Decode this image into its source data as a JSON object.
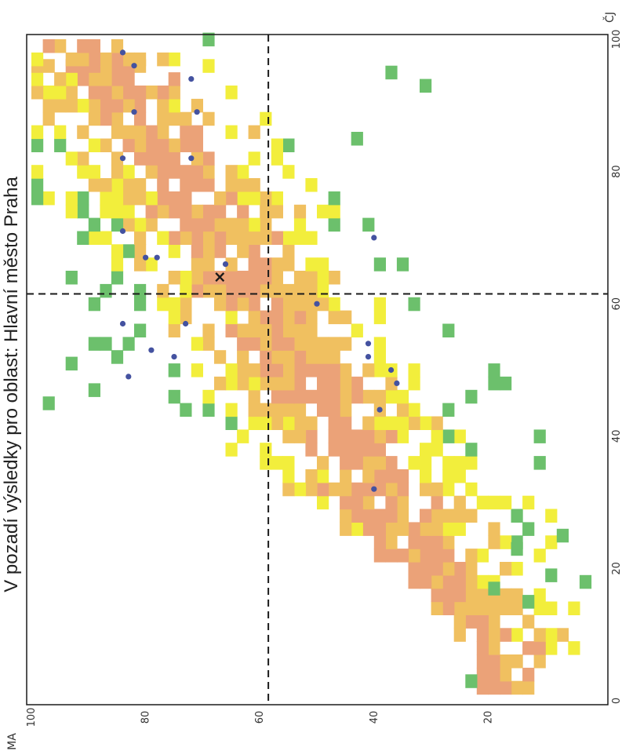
{
  "chart_data": {
    "type": "heatmap",
    "orientation": "rotated 90 degrees clockwise",
    "title": "V pozadí výsledky pro oblast: Hlavní město Praha",
    "xlabel": "ČJ",
    "ylabel": "MA",
    "xlim": [
      0,
      100
    ],
    "ylim": [
      0,
      100
    ],
    "x_ticks": [
      "0",
      "20",
      "40",
      "60",
      "80",
      "100"
    ],
    "y_ticks": [
      "20",
      "40",
      "60",
      "80",
      "100"
    ],
    "grid": false,
    "cell_size": 2,
    "reference_lines": {
      "x": 61.5,
      "y": 58.5
    },
    "colors": {
      "low": "#6cc06c",
      "medium": "#f2ee3c",
      "high": "#f0c060",
      "very_high": "#eba278",
      "points": "#4452a0",
      "reference_lines": "#1a1a1a",
      "marker": "#1a1a1a"
    },
    "bands": [
      {
        "x": 3,
        "y0": 12,
        "y1": 22
      },
      {
        "x": 7,
        "y0": 2,
        "y1": 22
      },
      {
        "x": 11,
        "y0": 6,
        "y1": 26
      },
      {
        "x": 15,
        "y0": 4,
        "y1": 30
      },
      {
        "x": 19,
        "y0": 2,
        "y1": 34
      },
      {
        "x": 23,
        "y0": 4,
        "y1": 40
      },
      {
        "x": 27,
        "y0": 6,
        "y1": 46
      },
      {
        "x": 31,
        "y0": 8,
        "y1": 56
      },
      {
        "x": 35,
        "y0": 10,
        "y1": 62
      },
      {
        "x": 39,
        "y0": 10,
        "y1": 68
      },
      {
        "x": 43,
        "y0": 12,
        "y1": 76
      },
      {
        "x": 47,
        "y0": 16,
        "y1": 82
      },
      {
        "x": 51,
        "y0": 18,
        "y1": 86
      },
      {
        "x": 55,
        "y0": 22,
        "y1": 90
      },
      {
        "x": 59,
        "y0": 26,
        "y1": 92
      },
      {
        "x": 63,
        "y0": 30,
        "y1": 94
      },
      {
        "x": 67,
        "y0": 34,
        "y1": 96
      },
      {
        "x": 71,
        "y0": 38,
        "y1": 98
      },
      {
        "x": 75,
        "y0": 42,
        "y1": 99
      },
      {
        "x": 79,
        "y0": 46,
        "y1": 99
      },
      {
        "x": 83,
        "y0": 52,
        "y1": 99
      },
      {
        "x": 87,
        "y0": 56,
        "y1": 99
      },
      {
        "x": 91,
        "y0": 62,
        "y1": 99
      },
      {
        "x": 95,
        "y0": 68,
        "y1": 99
      },
      {
        "x": 98,
        "y0": 74,
        "y1": 99
      }
    ],
    "points": [
      {
        "x": 98,
        "y": 84
      },
      {
        "x": 96,
        "y": 82
      },
      {
        "x": 94,
        "y": 72
      },
      {
        "x": 89,
        "y": 82
      },
      {
        "x": 89,
        "y": 71
      },
      {
        "x": 82,
        "y": 84
      },
      {
        "x": 82,
        "y": 72
      },
      {
        "x": 71,
        "y": 84
      },
      {
        "x": 67,
        "y": 80
      },
      {
        "x": 67,
        "y": 78
      },
      {
        "x": 66,
        "y": 66
      },
      {
        "x": 57,
        "y": 84
      },
      {
        "x": 57,
        "y": 73
      },
      {
        "x": 53,
        "y": 79
      },
      {
        "x": 52,
        "y": 75
      },
      {
        "x": 49,
        "y": 83
      },
      {
        "x": 70,
        "y": 40
      },
      {
        "x": 60,
        "y": 50
      },
      {
        "x": 54,
        "y": 41
      },
      {
        "x": 52,
        "y": 41
      },
      {
        "x": 50,
        "y": 37
      },
      {
        "x": 48,
        "y": 36
      },
      {
        "x": 44,
        "y": 39
      },
      {
        "x": 32,
        "y": 40
      }
    ],
    "marker": {
      "x": 64,
      "y": 67,
      "symbol": "×"
    }
  }
}
